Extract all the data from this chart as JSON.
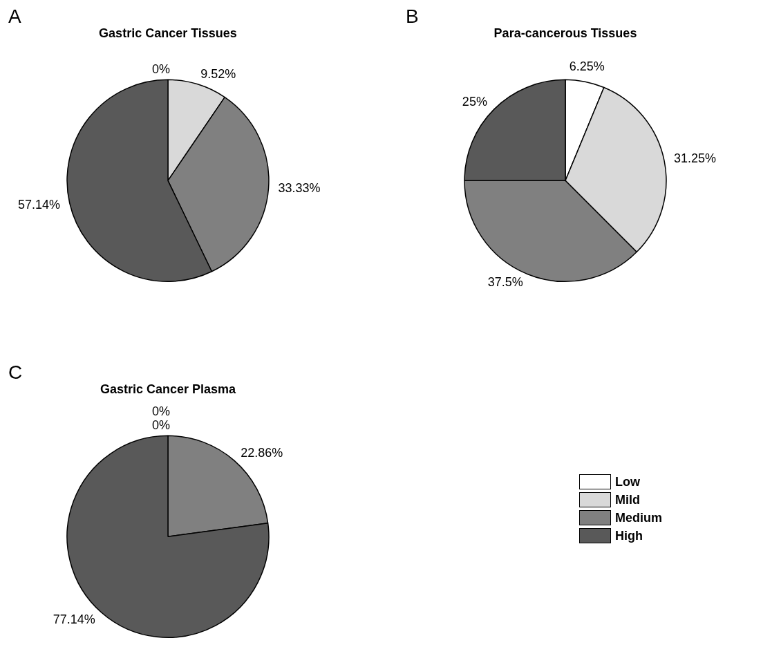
{
  "chart_data": [
    {
      "type": "pie",
      "title": "Gastric Cancer Tissues",
      "annotations": [
        "A"
      ],
      "categories": [
        null,
        null,
        null,
        null
      ],
      "values": [
        0,
        9.52,
        33.33,
        57.14
      ],
      "value_labels": [
        "0%",
        "9.52%",
        "33.33%",
        "57.14%"
      ],
      "colors": [
        "#ffffff",
        "#d9d9d9",
        "#808080",
        "#595959"
      ]
    },
    {
      "type": "pie",
      "title": "Para-cancerous Tissues",
      "annotations": [
        "B"
      ],
      "categories": [
        null,
        null,
        null,
        null
      ],
      "values": [
        6.25,
        31.25,
        37.5,
        25
      ],
      "value_labels": [
        "6.25%",
        "31.25%",
        "37.5%",
        "25%"
      ],
      "colors": [
        "#ffffff",
        "#d9d9d9",
        "#808080",
        "#595959"
      ]
    },
    {
      "type": "pie",
      "title": "Gastric Cancer Plasma",
      "annotations": [
        "C"
      ],
      "categories": [
        "Low",
        "Mild",
        "Medium",
        "High"
      ],
      "values": [
        0,
        0,
        22.86,
        77.14
      ],
      "value_labels": [
        "0%",
        "0%",
        "22.86%",
        "77.14%"
      ],
      "colors": [
        "#ffffff",
        "#d9d9d9",
        "#808080",
        "#595959"
      ],
      "legend": "right"
    }
  ]
}
